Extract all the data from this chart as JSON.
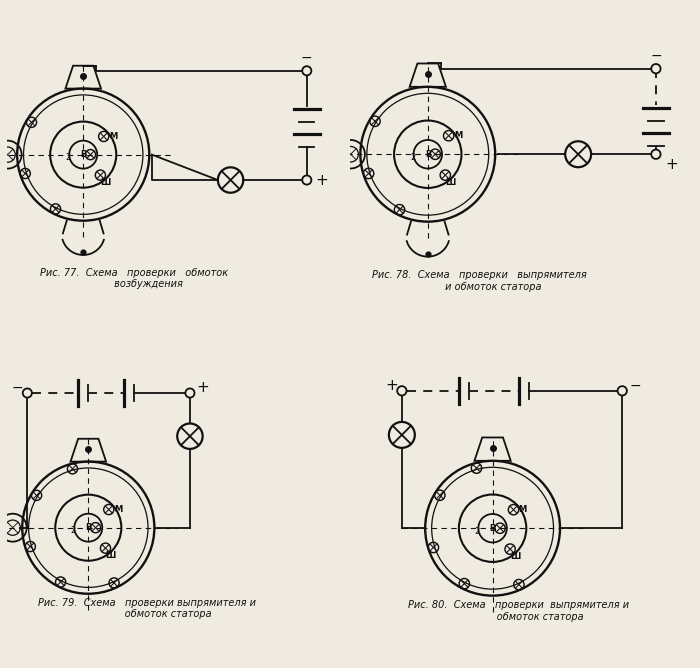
{
  "background": "#f0ebe0",
  "line_color": "#111111",
  "lw": 1.3,
  "fig_captions": [
    "Рис. 77.  Схема   проверки   обмоток\n         возбуждения",
    "Рис. 78.  Схема   проверки   выпрямителя\n         и обмоток статора",
    "Рис. 79.  Схема   проверки выпрямителя и\n              обмоток статора",
    "Рис. 80.  Схема   проверки  выпрямителя и\n              обмоток статора"
  ]
}
